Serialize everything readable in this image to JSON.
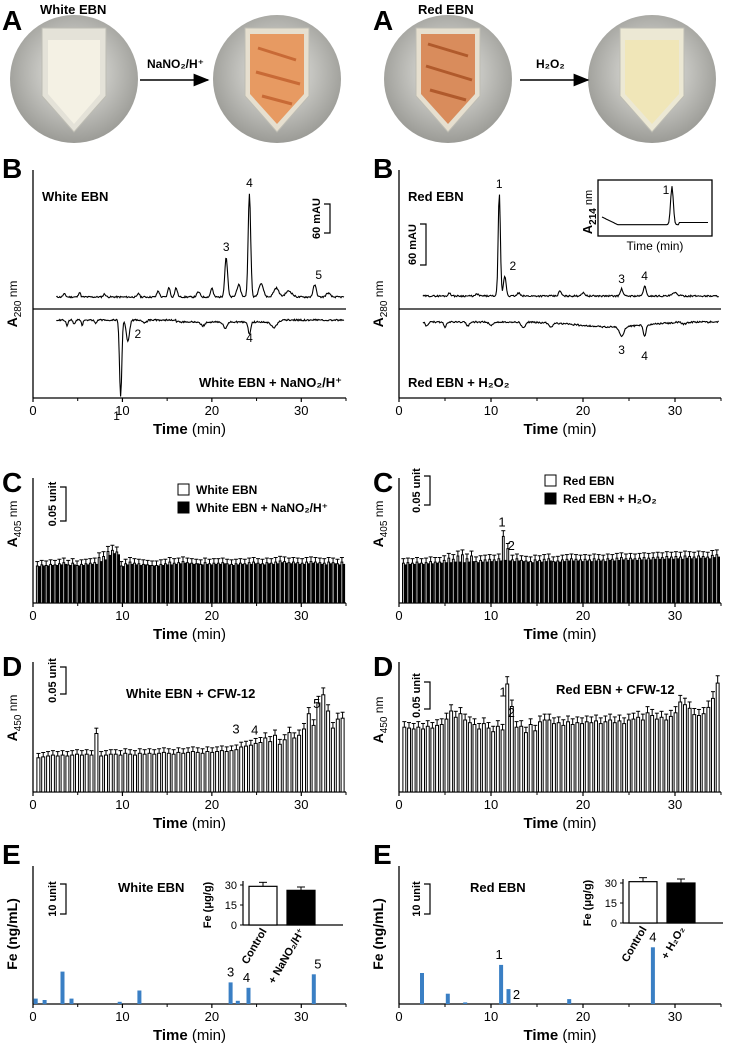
{
  "figure": {
    "panel_letters": {
      "A": "A",
      "B": "B",
      "C": "C",
      "D": "D",
      "E": "E"
    },
    "colors": {
      "black": "#000000",
      "white": "#ffffff",
      "blue": "#3a7fc4",
      "cream": "#efeccf",
      "orange": "#e8a070",
      "gray": "#8a8a8a"
    },
    "panelA_left": {
      "title": "White EBN",
      "arrow_label": "NaNO₂/H⁺",
      "icons": [
        "tube-white-icon",
        "tube-orange-icon"
      ]
    },
    "panelA_right": {
      "title": "Red EBN",
      "arrow_label": "H₂O₂",
      "icons": [
        "tube-red-icon",
        "tube-yellow-icon"
      ]
    },
    "axis_time_bold": "Time",
    "axis_time_unit": "(min)"
  },
  "chart_data": [
    {
      "id": "B-left",
      "type": "line",
      "title": "White EBN",
      "ylabel": "A280 nm",
      "xlabel": "Time (min)",
      "xlim": [
        0,
        35
      ],
      "xticks": [
        0,
        10,
        20,
        30
      ],
      "scale_bar": "60 mAU",
      "series": [
        {
          "name": "White EBN",
          "peaks": [
            {
              "label": "3",
              "x": 21.6
            },
            {
              "label": "4",
              "x": 24.2
            },
            {
              "label": "5",
              "x": 31.5
            }
          ]
        },
        {
          "name": "White EBN + NaNO₂/H⁺",
          "peaks": [
            {
              "label": "1",
              "x": 9.8
            },
            {
              "label": "2",
              "x": 10.6
            },
            {
              "label": "4",
              "x": 24.2
            }
          ]
        }
      ]
    },
    {
      "id": "B-right",
      "type": "line",
      "title": "Red EBN",
      "ylabel": "A280 nm",
      "xlabel": "Time (min)",
      "xlim": [
        0,
        35
      ],
      "xticks": [
        0,
        10,
        20,
        30
      ],
      "scale_bar": "60 mAU",
      "series": [
        {
          "name": "Red EBN",
          "peaks": [
            {
              "label": "1",
              "x": 10.9
            },
            {
              "label": "2",
              "x": 11.5
            },
            {
              "label": "3",
              "x": 24.2
            },
            {
              "label": "4",
              "x": 26.7
            }
          ]
        },
        {
          "name": "Red EBN + H₂O₂",
          "peaks": [
            {
              "label": "3",
              "x": 24.2
            },
            {
              "label": "4",
              "x": 26.7
            }
          ]
        }
      ],
      "inset": {
        "ylabel": "A214 nm",
        "xlabel": "Time (min)",
        "peak_label": "1"
      }
    },
    {
      "id": "C-left",
      "type": "bar",
      "ylabel": "A405 nm",
      "xlabel": "Time (min)",
      "xlim": [
        0,
        35
      ],
      "xticks": [
        0,
        10,
        20,
        30
      ],
      "scale_bar": "0.05 unit",
      "x_start": 0,
      "x_step": 0.5,
      "series": [
        {
          "name": "White EBN",
          "values": [
            0.066,
            0.068,
            0.067,
            0.069,
            0.068,
            0.07,
            0.072,
            0.068,
            0.071,
            0.067,
            0.069,
            0.07,
            0.071,
            0.072,
            0.081,
            0.083,
            0.092,
            0.094,
            0.091,
            0.066,
            0.07,
            0.073,
            0.071,
            0.07,
            0.069,
            0.068,
            0.067,
            0.067,
            0.069,
            0.07,
            0.073,
            0.071,
            0.072,
            0.074,
            0.072,
            0.071,
            0.07,
            0.069,
            0.072,
            0.07,
            0.071,
            0.071,
            0.072,
            0.07,
            0.069,
            0.07,
            0.071,
            0.07,
            0.072,
            0.073,
            0.071,
            0.07,
            0.072,
            0.071,
            0.073,
            0.075,
            0.074,
            0.072,
            0.073,
            0.072,
            0.071,
            0.073,
            0.074,
            0.073,
            0.072,
            0.071,
            0.073,
            0.072,
            0.07,
            0.073
          ]
        },
        {
          "name": "White EBN + NaNO₂/H⁺",
          "values": [
            0.065,
            0.066,
            0.066,
            0.067,
            0.067,
            0.068,
            0.069,
            0.067,
            0.068,
            0.066,
            0.067,
            0.068,
            0.069,
            0.069,
            0.074,
            0.077,
            0.085,
            0.088,
            0.086,
            0.065,
            0.068,
            0.069,
            0.068,
            0.067,
            0.068,
            0.067,
            0.066,
            0.066,
            0.067,
            0.068,
            0.068,
            0.069,
            0.07,
            0.071,
            0.07,
            0.069,
            0.07,
            0.068,
            0.069,
            0.068,
            0.069,
            0.069,
            0.07,
            0.068,
            0.067,
            0.068,
            0.069,
            0.068,
            0.069,
            0.07,
            0.069,
            0.068,
            0.07,
            0.069,
            0.07,
            0.072,
            0.071,
            0.07,
            0.07,
            0.069,
            0.069,
            0.07,
            0.071,
            0.07,
            0.069,
            0.068,
            0.07,
            0.07,
            0.068,
            0.069
          ]
        }
      ]
    },
    {
      "id": "C-right",
      "type": "bar",
      "ylabel": "A405 nm",
      "xlabel": "Time (min)",
      "xlim": [
        0,
        35
      ],
      "xticks": [
        0,
        10,
        20,
        30
      ],
      "scale_bar": "0.05 unit",
      "x_start": 0,
      "x_step": 0.5,
      "peak_labels": [
        {
          "label": "1",
          "x": 11.2
        },
        {
          "label": "2",
          "x": 12.2
        }
      ],
      "series": [
        {
          "name": "Red EBN",
          "values": [
            0.071,
            0.072,
            0.071,
            0.073,
            0.071,
            0.072,
            0.074,
            0.073,
            0.073,
            0.076,
            0.08,
            0.078,
            0.084,
            0.086,
            0.079,
            0.084,
            0.074,
            0.076,
            0.077,
            0.078,
            0.077,
            0.079,
            0.119,
            0.097,
            0.077,
            0.079,
            0.076,
            0.075,
            0.074,
            0.077,
            0.076,
            0.078,
            0.079,
            0.074,
            0.075,
            0.077,
            0.078,
            0.079,
            0.078,
            0.077,
            0.078,
            0.077,
            0.079,
            0.078,
            0.077,
            0.079,
            0.078,
            0.08,
            0.081,
            0.079,
            0.08,
            0.079,
            0.08,
            0.081,
            0.08,
            0.081,
            0.082,
            0.081,
            0.083,
            0.082,
            0.083,
            0.082,
            0.084,
            0.083,
            0.082,
            0.084,
            0.083,
            0.082,
            0.085,
            0.086
          ]
        },
        {
          "name": "Red EBN + H₂O₂",
          "values": [
            0.068,
            0.069,
            0.069,
            0.07,
            0.069,
            0.07,
            0.07,
            0.071,
            0.071,
            0.072,
            0.072,
            0.073,
            0.073,
            0.072,
            0.073,
            0.074,
            0.072,
            0.073,
            0.073,
            0.074,
            0.074,
            0.075,
            0.076,
            0.075,
            0.074,
            0.075,
            0.074,
            0.073,
            0.072,
            0.074,
            0.073,
            0.074,
            0.075,
            0.073,
            0.073,
            0.074,
            0.075,
            0.075,
            0.075,
            0.074,
            0.075,
            0.074,
            0.075,
            0.075,
            0.074,
            0.076,
            0.075,
            0.076,
            0.077,
            0.076,
            0.077,
            0.076,
            0.077,
            0.077,
            0.077,
            0.078,
            0.078,
            0.078,
            0.079,
            0.078,
            0.079,
            0.078,
            0.08,
            0.079,
            0.079,
            0.08,
            0.08,
            0.079,
            0.081,
            0.082
          ]
        }
      ]
    },
    {
      "id": "D-left",
      "type": "bar",
      "title": "White EBN + CFW-12",
      "ylabel": "A450 nm",
      "xlabel": "Time (min)",
      "xlim": [
        0,
        35
      ],
      "xticks": [
        0,
        10,
        20,
        30
      ],
      "scale_bar": "0.05 unit",
      "x_start": 0,
      "x_step": 0.5,
      "peak_labels": [
        {
          "label": "3",
          "x": 22.7
        },
        {
          "label": "4",
          "x": 24.8
        },
        {
          "label": "5",
          "x": 31.5
        }
      ],
      "series": [
        {
          "name": "White EBN + CFW-12",
          "values": [
            0.038,
            0.039,
            0.04,
            0.041,
            0.04,
            0.041,
            0.04,
            0.041,
            0.042,
            0.041,
            0.042,
            0.041,
            0.065,
            0.04,
            0.041,
            0.042,
            0.042,
            0.041,
            0.043,
            0.042,
            0.041,
            0.043,
            0.042,
            0.043,
            0.042,
            0.043,
            0.044,
            0.043,
            0.042,
            0.044,
            0.043,
            0.044,
            0.045,
            0.044,
            0.043,
            0.045,
            0.044,
            0.045,
            0.046,
            0.045,
            0.046,
            0.047,
            0.05,
            0.051,
            0.052,
            0.054,
            0.055,
            0.06,
            0.056,
            0.063,
            0.053,
            0.058,
            0.066,
            0.06,
            0.063,
            0.07,
            0.087,
            0.074,
            0.099,
            0.108,
            0.09,
            0.071,
            0.081,
            0.082
          ]
        }
      ]
    },
    {
      "id": "D-right",
      "type": "bar",
      "title": "Red EBN + CFW-12",
      "ylabel": "A450 nm",
      "xlabel": "Time (min)",
      "xlim": [
        0,
        35
      ],
      "xticks": [
        0,
        10,
        20,
        30
      ],
      "scale_bar": "0.05 unit",
      "x_start": 0,
      "x_step": 0.5,
      "peak_labels": [
        {
          "label": "1",
          "x": 11.3
        },
        {
          "label": "2",
          "x": 12.2
        }
      ],
      "series": [
        {
          "name": "Red EBN + CFW-12",
          "values": [
            0.072,
            0.071,
            0.07,
            0.072,
            0.07,
            0.073,
            0.071,
            0.074,
            0.075,
            0.081,
            0.09,
            0.083,
            0.087,
            0.08,
            0.077,
            0.075,
            0.07,
            0.076,
            0.071,
            0.067,
            0.073,
            0.069,
            0.12,
            0.095,
            0.072,
            0.073,
            0.066,
            0.075,
            0.068,
            0.078,
            0.08,
            0.08,
            0.076,
            0.077,
            0.074,
            0.078,
            0.075,
            0.077,
            0.076,
            0.078,
            0.077,
            0.079,
            0.076,
            0.078,
            0.08,
            0.077,
            0.079,
            0.076,
            0.08,
            0.081,
            0.083,
            0.08,
            0.088,
            0.085,
            0.081,
            0.083,
            0.08,
            0.084,
            0.088,
            0.1,
            0.097,
            0.093,
            0.086,
            0.085,
            0.087,
            0.094,
            0.104,
            0.121
          ]
        }
      ]
    },
    {
      "id": "E-left",
      "type": "bar",
      "title": "White EBN",
      "ylabel": "Fe (ng/mL)",
      "xlabel": "Time (min)",
      "xlim": [
        0,
        35
      ],
      "xticks": [
        0,
        10,
        20,
        30
      ],
      "scale_bar": "10 unit",
      "series": [
        {
          "name": "Fe",
          "x": [
            0.3,
            1.3,
            3.3,
            4.3,
            9.7,
            11.9,
            22.1,
            22.9,
            24.1,
            31.4
          ],
          "values": [
            2,
            1.5,
            12,
            2,
            0.8,
            5,
            8,
            1.2,
            6,
            11
          ]
        }
      ],
      "peak_labels": [
        {
          "label": "3",
          "x": 22.1
        },
        {
          "label": "4",
          "x": 24.1
        },
        {
          "label": "5",
          "x": 31.4
        }
      ],
      "inset": {
        "type": "bar",
        "ylabel": "Fe (μg/g)",
        "ylim": [
          0,
          30
        ],
        "yticks": [
          0,
          15,
          30
        ],
        "categories": [
          "Control",
          "+ NaNO₂/H⁺"
        ],
        "values": [
          29,
          26
        ],
        "errors": [
          3,
          2.5
        ],
        "fills": [
          "#ffffff",
          "#000000"
        ]
      }
    },
    {
      "id": "E-right",
      "type": "bar",
      "title": "Red EBN",
      "ylabel": "Fe (ng/mL)",
      "xlabel": "Time (min)",
      "xlim": [
        0,
        35
      ],
      "xticks": [
        0,
        10,
        20,
        30
      ],
      "scale_bar": "10 unit",
      "series": [
        {
          "name": "Fe",
          "x": [
            2.5,
            5.3,
            7.2,
            11.1,
            11.9,
            18.5,
            27.6
          ],
          "values": [
            11.5,
            3.8,
            0.6,
            14.5,
            5.5,
            1.8,
            21
          ]
        }
      ],
      "peak_labels": [
        {
          "label": "1",
          "x": 11.1
        },
        {
          "label": "2",
          "x": 11.9
        },
        {
          "label": "4",
          "x": 27.6
        }
      ],
      "inset": {
        "type": "bar",
        "ylabel": "Fe (μg/g)",
        "ylim": [
          0,
          30
        ],
        "yticks": [
          0,
          15,
          30
        ],
        "categories": [
          "Control",
          "+ H₂O₂"
        ],
        "values": [
          31,
          30
        ],
        "errors": [
          3,
          3
        ],
        "fills": [
          "#ffffff",
          "#000000"
        ]
      }
    }
  ]
}
